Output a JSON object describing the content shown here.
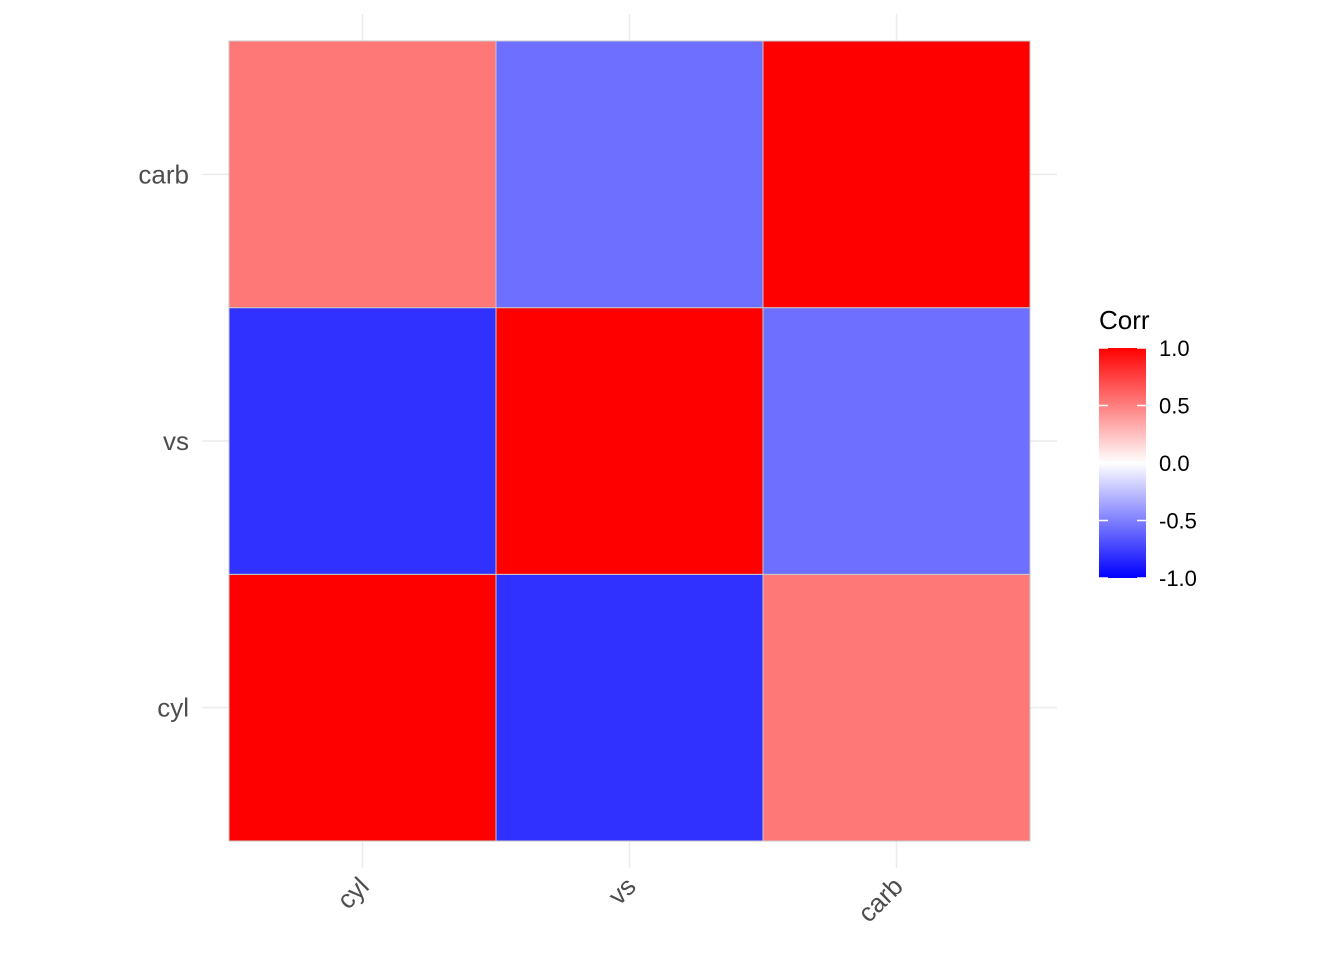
{
  "chart_data": {
    "type": "heatmap",
    "x_categories": [
      "cyl",
      "vs",
      "carb"
    ],
    "y_categories": [
      "cyl",
      "vs",
      "carb"
    ],
    "values": [
      [
        1.0,
        -0.81,
        0.53
      ],
      [
        -0.81,
        1.0,
        -0.57
      ],
      [
        0.53,
        -0.57,
        1.0
      ]
    ],
    "legend": {
      "title": "Corr",
      "ticks": [
        1.0,
        0.5,
        0.0,
        -0.5,
        -1.0
      ],
      "tick_labels": [
        "1.0",
        "0.5",
        "0.0",
        "-0.5",
        "-1.0"
      ],
      "placement": "right"
    },
    "color_scale": {
      "low": "#0000ff",
      "mid": "#ffffff",
      "high": "#ff0000",
      "limits": [
        -1,
        1
      ]
    },
    "grid": true,
    "x_tick_rotation": "45 degrees"
  }
}
